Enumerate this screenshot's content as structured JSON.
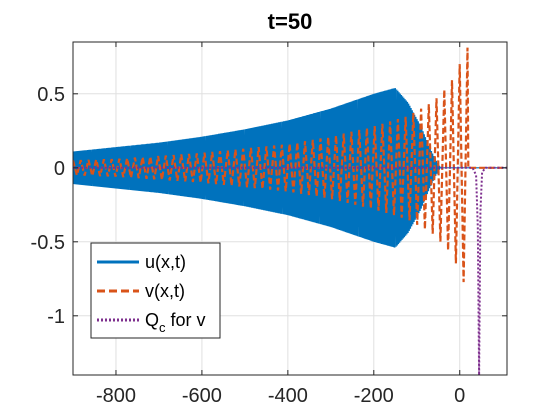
{
  "chart_data": {
    "type": "line",
    "title": "t=50",
    "xlabel": "",
    "ylabel": "",
    "xlim": [
      -900,
      110
    ],
    "ylim": [
      -1.4,
      0.85
    ],
    "xticks": [
      -800,
      -600,
      -400,
      -200,
      0
    ],
    "yticks": [
      0.5,
      0,
      -0.5,
      -1
    ],
    "xtick_labels": [
      "-800",
      "-600",
      "-400",
      "-200",
      "0"
    ],
    "ytick_labels": [
      "0.5",
      "0",
      "-0.5",
      "-1"
    ],
    "grid": true,
    "legend_position": "bottom-left",
    "series": [
      {
        "name": "u(x,t)",
        "style": "solid",
        "color": "#0072BD",
        "envelope": {
          "x": [
            -900,
            -800,
            -700,
            -600,
            -500,
            -400,
            -300,
            -200,
            -150,
            -120,
            -90,
            -70,
            -55,
            -45
          ],
          "amplitude": [
            0.11,
            0.14,
            0.17,
            0.21,
            0.26,
            0.32,
            0.4,
            0.5,
            0.54,
            0.44,
            0.28,
            0.14,
            0.05,
            0.0
          ]
        },
        "baseline_x_range": [
          -45,
          110
        ],
        "baseline_value": 0
      },
      {
        "name": "v(x,t)",
        "style": "dashed",
        "color": "#D95319",
        "envelope": {
          "x": [
            -900,
            -800,
            -700,
            -600,
            -500,
            -400,
            -300,
            -200,
            -120,
            -60,
            -20,
            0,
            10,
            20
          ],
          "amplitude": [
            0.05,
            0.06,
            0.08,
            0.1,
            0.13,
            0.16,
            0.21,
            0.28,
            0.35,
            0.45,
            0.58,
            0.7,
            0.78,
            0.82
          ]
        },
        "baseline_x_range": [
          20,
          110
        ],
        "baseline_value": 0
      },
      {
        "name_main": "Q",
        "name_sub": "c",
        "name_rest": " for v",
        "style": "dotted",
        "color": "#7E2F8E",
        "points": [
          [
            -900,
            0
          ],
          [
            30,
            0
          ],
          [
            38,
            -0.05
          ],
          [
            42,
            -0.4
          ],
          [
            45,
            -1.4
          ],
          [
            48,
            -0.3
          ],
          [
            52,
            -0.03
          ],
          [
            60,
            0
          ],
          [
            110,
            0
          ]
        ]
      }
    ]
  }
}
